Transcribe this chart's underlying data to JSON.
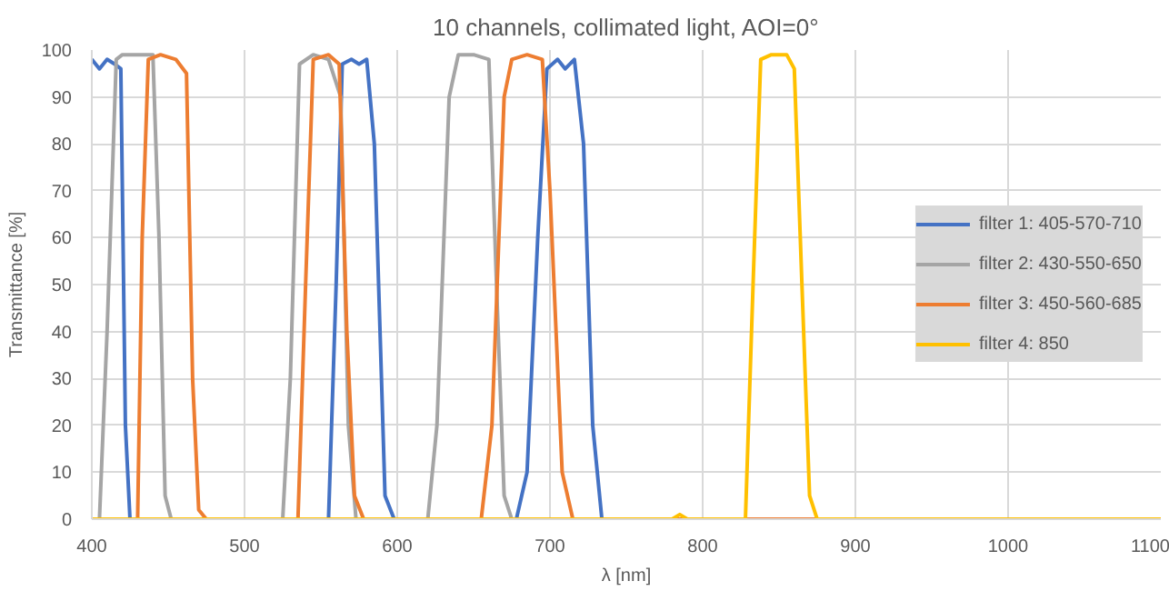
{
  "chart_data": {
    "type": "line",
    "title": "10 channels, collimated light, AOI=0°",
    "xlabel": "λ [nm]",
    "ylabel": "Transmittance [%]",
    "xlim": [
      400,
      1100
    ],
    "xticks": [
      400,
      500,
      600,
      700,
      800,
      900,
      1000,
      1100
    ],
    "ylim": [
      0,
      100
    ],
    "yticks": [
      0,
      10,
      20,
      30,
      40,
      50,
      60,
      70,
      80,
      90,
      100
    ],
    "grid": true,
    "legend": "right",
    "marker": "none",
    "line_style": "solid",
    "series": [
      {
        "name": "filter 1: 405-570-710",
        "color": "#4472c4",
        "x": [
          400,
          405,
          410,
          415,
          419,
          422,
          425,
          555,
          560,
          564,
          570,
          575,
          580,
          585,
          592,
          598,
          678,
          685,
          692,
          698,
          705,
          710,
          716,
          722,
          728,
          734,
          1100
        ],
        "values": [
          98,
          96,
          98,
          97,
          96,
          20,
          0,
          0,
          50,
          97,
          98,
          97,
          98,
          80,
          5,
          0,
          0,
          10,
          60,
          96,
          98,
          96,
          98,
          80,
          20,
          0,
          0
        ]
      },
      {
        "name": "filter 2: 430-550-650",
        "color": "#a5a5a5",
        "x": [
          400,
          405,
          410,
          416,
          420,
          430,
          440,
          444,
          448,
          452,
          525,
          530,
          536,
          545,
          555,
          563,
          568,
          573,
          620,
          626,
          634,
          640,
          650,
          660,
          665,
          670,
          675,
          1100
        ],
        "values": [
          0,
          0,
          40,
          98,
          99,
          99,
          99,
          60,
          5,
          0,
          0,
          30,
          97,
          99,
          98,
          90,
          20,
          0,
          0,
          20,
          90,
          99,
          99,
          98,
          50,
          5,
          0,
          0
        ]
      },
      {
        "name": "filter 3: 450-560-685",
        "color": "#ed7d31",
        "x": [
          400,
          430,
          433,
          437,
          445,
          455,
          462,
          466,
          470,
          475,
          535,
          540,
          545,
          555,
          562,
          567,
          572,
          578,
          655,
          662,
          670,
          675,
          685,
          695,
          700,
          708,
          715,
          1100
        ],
        "values": [
          0,
          0,
          60,
          98,
          99,
          98,
          95,
          30,
          2,
          0,
          0,
          50,
          98,
          99,
          97,
          40,
          5,
          0,
          0,
          20,
          90,
          98,
          99,
          98,
          70,
          10,
          0,
          0
        ]
      },
      {
        "name": "filter 4: 850",
        "color": "#ffc000",
        "x": [
          400,
          780,
          785,
          790,
          828,
          833,
          838,
          845,
          855,
          860,
          865,
          870,
          875,
          1100
        ],
        "values": [
          0,
          0,
          1,
          0,
          0,
          50,
          98,
          99,
          99,
          96,
          50,
          5,
          0,
          0
        ]
      }
    ]
  }
}
